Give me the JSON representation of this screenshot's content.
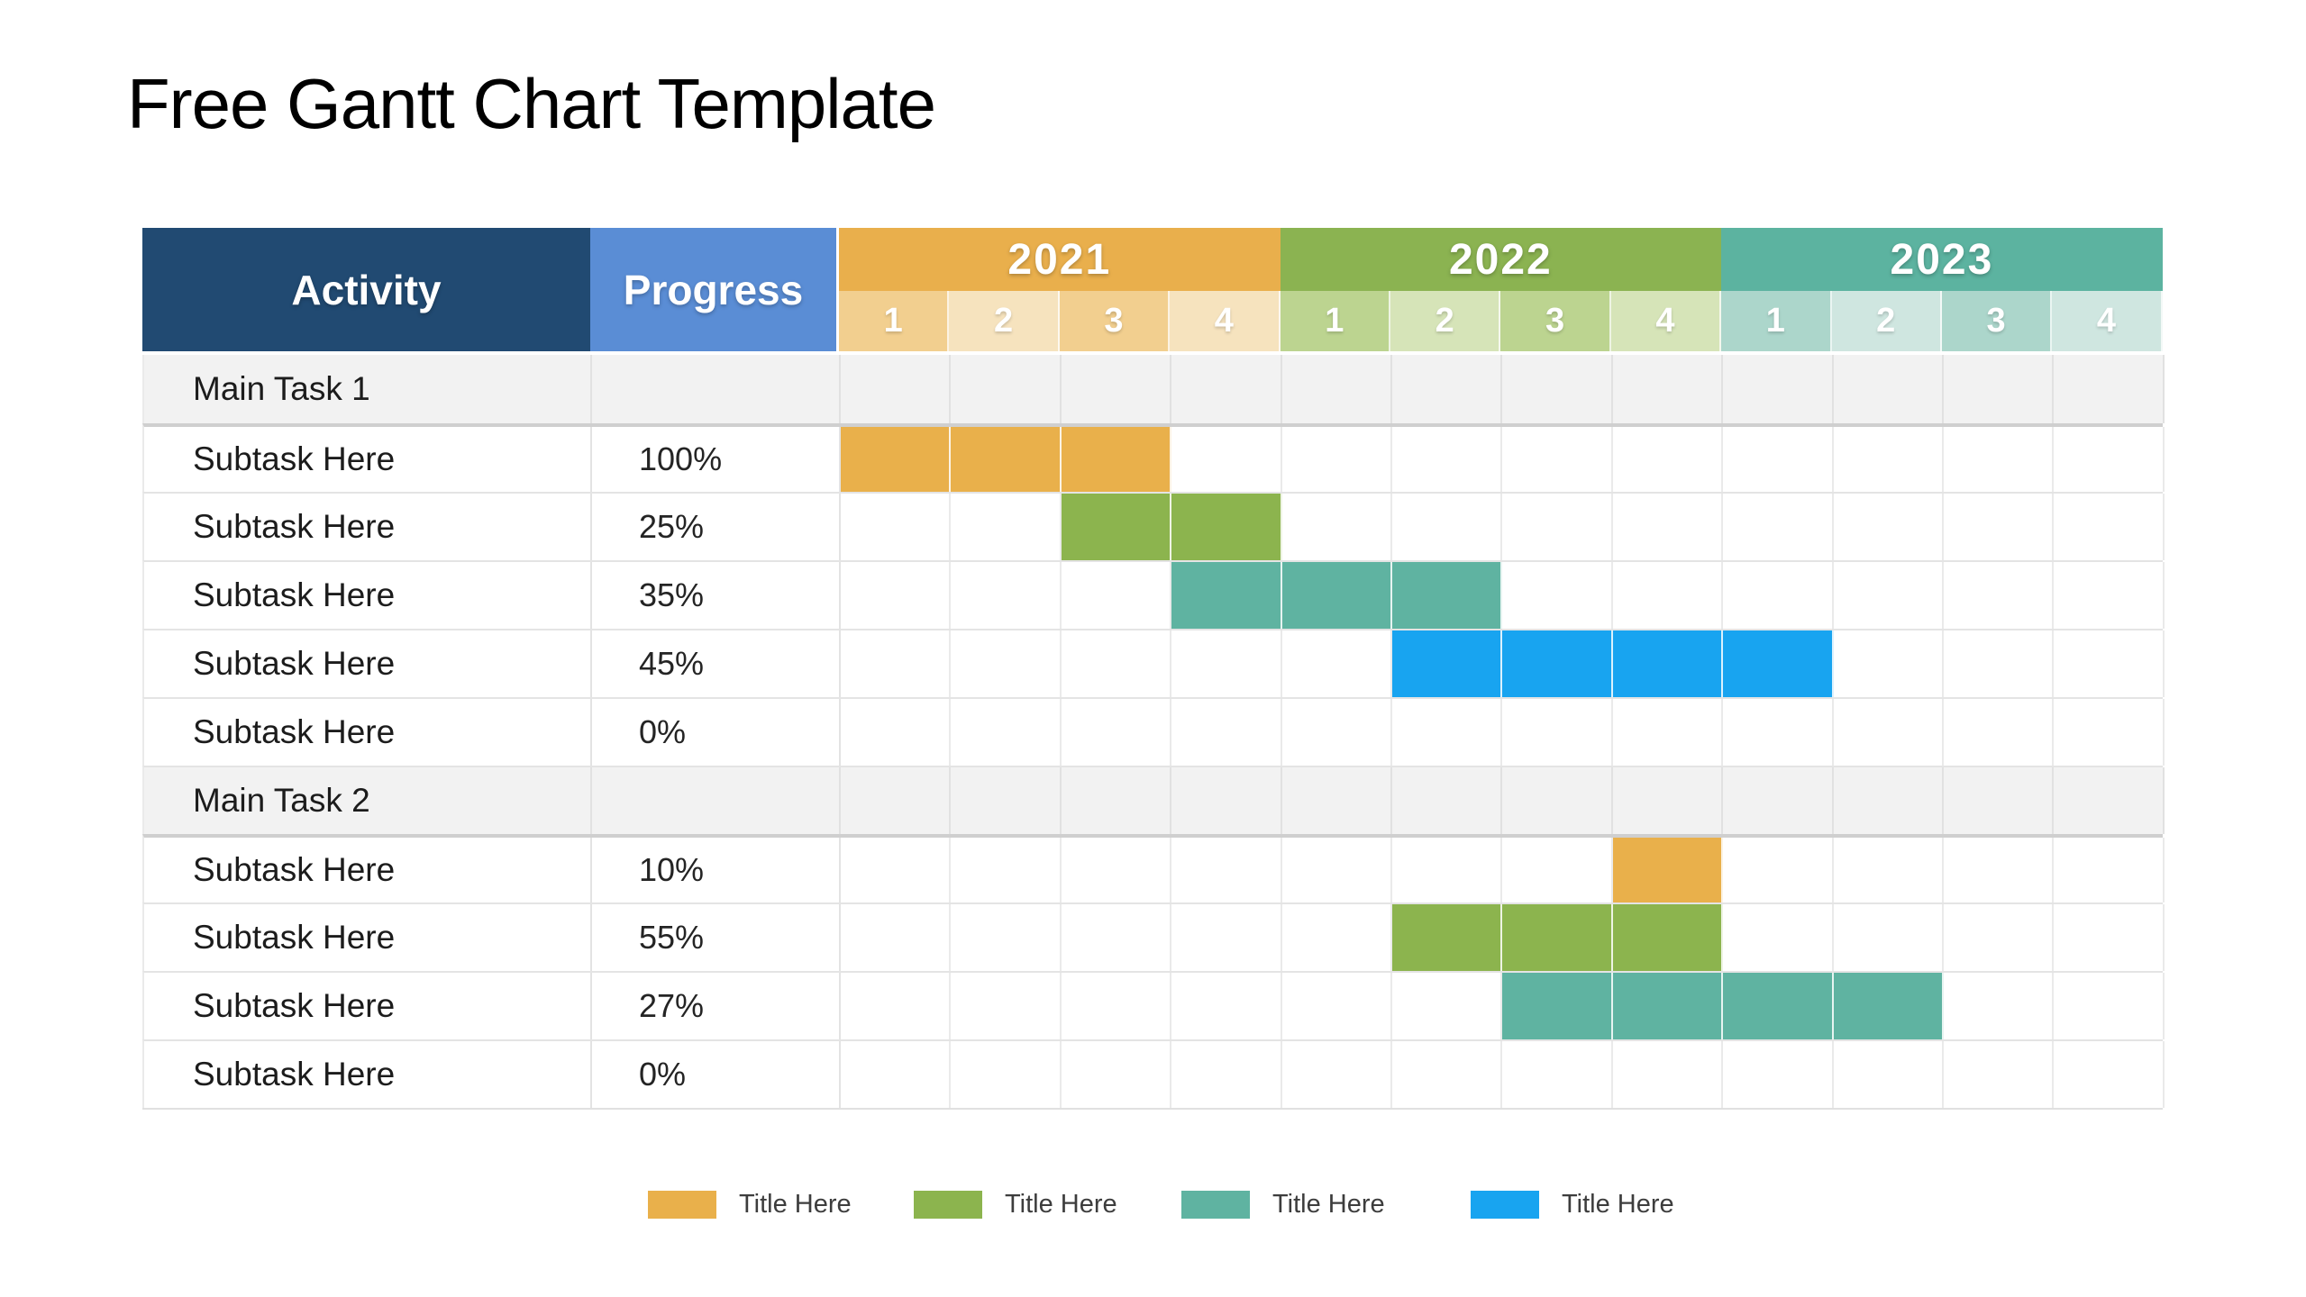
{
  "title": "Free Gantt Chart Template",
  "table": {
    "activity_header": "Activity",
    "progress_header": "Progress",
    "years": [
      {
        "label": "2021",
        "color": "#E9AF4C",
        "tint_strong": "#F2CF8F",
        "tint_light": "#F6E3BE",
        "quarters": [
          "1",
          "2",
          "3",
          "4"
        ]
      },
      {
        "label": "2022",
        "color": "#8BB351",
        "tint_strong": "#BCD490",
        "tint_light": "#D6E4B8",
        "quarters": [
          "1",
          "2",
          "3",
          "4"
        ]
      },
      {
        "label": "2023",
        "color": "#5CB3A0",
        "tint_strong": "#ACD6CB",
        "tint_light": "#CFE6E0",
        "quarters": [
          "1",
          "2",
          "3",
          "4"
        ]
      }
    ],
    "rows": [
      {
        "type": "main",
        "activity": "Main Task 1",
        "progress": "",
        "sep": "none",
        "bar": null
      },
      {
        "type": "sub",
        "activity": "Subtask Here",
        "progress": "100%",
        "sep": "strong",
        "bar": {
          "color": "orange",
          "start": 1,
          "end": 3
        }
      },
      {
        "type": "sub",
        "activity": "Subtask Here",
        "progress": "25%",
        "sep": "normal",
        "bar": {
          "color": "green",
          "start": 3,
          "end": 4
        }
      },
      {
        "type": "sub",
        "activity": "Subtask Here",
        "progress": "35%",
        "sep": "normal",
        "bar": {
          "color": "teal",
          "start": 4,
          "end": 6
        }
      },
      {
        "type": "sub",
        "activity": "Subtask Here",
        "progress": "45%",
        "sep": "normal",
        "bar": {
          "color": "blue",
          "start": 6,
          "end": 9
        }
      },
      {
        "type": "sub",
        "activity": "Subtask Here",
        "progress": "0%",
        "sep": "normal",
        "bar": null
      },
      {
        "type": "main",
        "activity": "Main Task 2",
        "progress": "",
        "sep": "normal",
        "bar": null
      },
      {
        "type": "sub",
        "activity": "Subtask Here",
        "progress": "10%",
        "sep": "strong",
        "bar": {
          "color": "orange",
          "start": 8,
          "end": 8
        }
      },
      {
        "type": "sub",
        "activity": "Subtask Here",
        "progress": "55%",
        "sep": "normal",
        "bar": {
          "color": "green",
          "start": 6,
          "end": 8
        }
      },
      {
        "type": "sub",
        "activity": "Subtask Here",
        "progress": "27%",
        "sep": "normal",
        "bar": {
          "color": "teal",
          "start": 7,
          "end": 10
        }
      },
      {
        "type": "sub",
        "activity": "Subtask Here",
        "progress": "0%",
        "sep": "normal",
        "bar": null
      }
    ]
  },
  "colors": {
    "orange": "#E9B04B",
    "green": "#8CB44E",
    "teal": "#5FB3A1",
    "blue": "#18A4F0",
    "header_navy": "#214A72",
    "header_blue": "#5A8DD5",
    "main_row_bg": "#F2F2F2"
  },
  "legend": {
    "items": [
      {
        "label": "Title Here",
        "color": "orange"
      },
      {
        "label": "Title Here",
        "color": "green"
      },
      {
        "label": "Title Here",
        "color": "teal"
      },
      {
        "label": "Title Here",
        "color": "blue"
      }
    ]
  },
  "chart_data": {
    "type": "bar",
    "subtype": "gantt",
    "title": "Free Gantt Chart Template",
    "x": [
      "2021-Q1",
      "2021-Q2",
      "2021-Q3",
      "2021-Q4",
      "2022-Q1",
      "2022-Q2",
      "2022-Q3",
      "2022-Q4",
      "2023-Q1",
      "2023-Q2",
      "2023-Q3",
      "2023-Q4"
    ],
    "columns": [
      "Activity",
      "Progress",
      "2021 Q1-Q4",
      "2022 Q1-Q4",
      "2023 Q1-Q4"
    ],
    "tasks": [
      {
        "activity": "Main Task 1",
        "progress": null,
        "bar": null
      },
      {
        "activity": "Subtask Here",
        "progress": 100,
        "bar": {
          "start": "2021-Q1",
          "end": "2021-Q3",
          "color": "#E9B04B"
        }
      },
      {
        "activity": "Subtask Here",
        "progress": 25,
        "bar": {
          "start": "2021-Q3",
          "end": "2021-Q4",
          "color": "#8CB44E"
        }
      },
      {
        "activity": "Subtask Here",
        "progress": 35,
        "bar": {
          "start": "2021-Q4",
          "end": "2022-Q2",
          "color": "#5FB3A1"
        }
      },
      {
        "activity": "Subtask Here",
        "progress": 45,
        "bar": {
          "start": "2022-Q2",
          "end": "2023-Q1",
          "color": "#18A4F0"
        }
      },
      {
        "activity": "Subtask Here",
        "progress": 0,
        "bar": null
      },
      {
        "activity": "Main Task 2",
        "progress": null,
        "bar": null
      },
      {
        "activity": "Subtask Here",
        "progress": 10,
        "bar": {
          "start": "2022-Q4",
          "end": "2022-Q4",
          "color": "#E9B04B"
        }
      },
      {
        "activity": "Subtask Here",
        "progress": 55,
        "bar": {
          "start": "2022-Q2",
          "end": "2022-Q4",
          "color": "#8CB44E"
        }
      },
      {
        "activity": "Subtask Here",
        "progress": 27,
        "bar": {
          "start": "2022-Q3",
          "end": "2023-Q2",
          "color": "#5FB3A1"
        }
      },
      {
        "activity": "Subtask Here",
        "progress": 0,
        "bar": null
      }
    ],
    "legend_entries": [
      "Title Here",
      "Title Here",
      "Title Here",
      "Title Here"
    ],
    "legend_position": "bottom",
    "grid": true
  }
}
